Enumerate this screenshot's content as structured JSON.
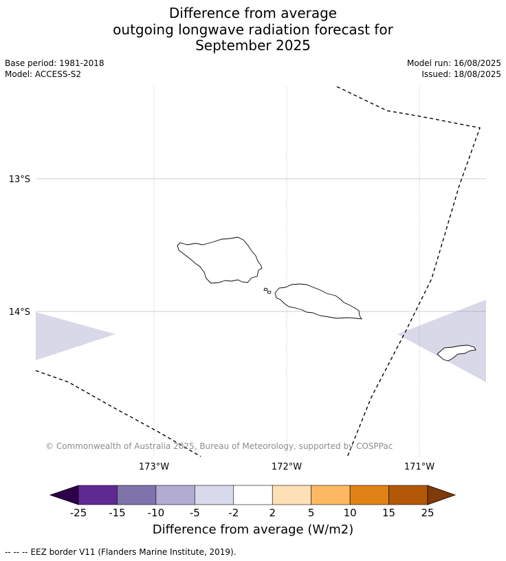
{
  "title": {
    "line1": "Difference from average",
    "line2": "outgoing longwave radiation forecast for",
    "line3": "September 2025"
  },
  "meta": {
    "base_period": "Base period: 1981-2018",
    "model": "Model: ACCESS-S2",
    "model_run": "Model run: 16/08/2025",
    "issued": "Issued: 18/08/2025"
  },
  "map": {
    "lat_labels": [
      "13°S",
      "14°S"
    ],
    "lon_labels": [
      "173°W",
      "172°W",
      "171°W"
    ],
    "copyright": "© Commonwealth of Australia 2025, Bureau of Meteorology, supported by COSPPac",
    "anomaly_fill_color": "#d8d8e9",
    "coastline_color": "#000000",
    "grid_color": "#9a9a9a"
  },
  "colorbar": {
    "label": "Difference from average (W/m2)",
    "ticks": [
      "-25",
      "-15",
      "-10",
      "-5",
      "-2",
      "2",
      "5",
      "10",
      "15",
      "25"
    ],
    "under_color": "#2d004b",
    "over_color": "#7f3b08",
    "colors": [
      "#5e2a92",
      "#8073ac",
      "#b2abd2",
      "#d8daeb",
      "#ffffff",
      "#fee0b6",
      "#fdb863",
      "#e08214",
      "#b35806"
    ]
  },
  "footer": {
    "legend_marker": "--  --  --",
    "legend_text": "EEZ border V11 (Flanders Marine Institute, 2019)."
  }
}
